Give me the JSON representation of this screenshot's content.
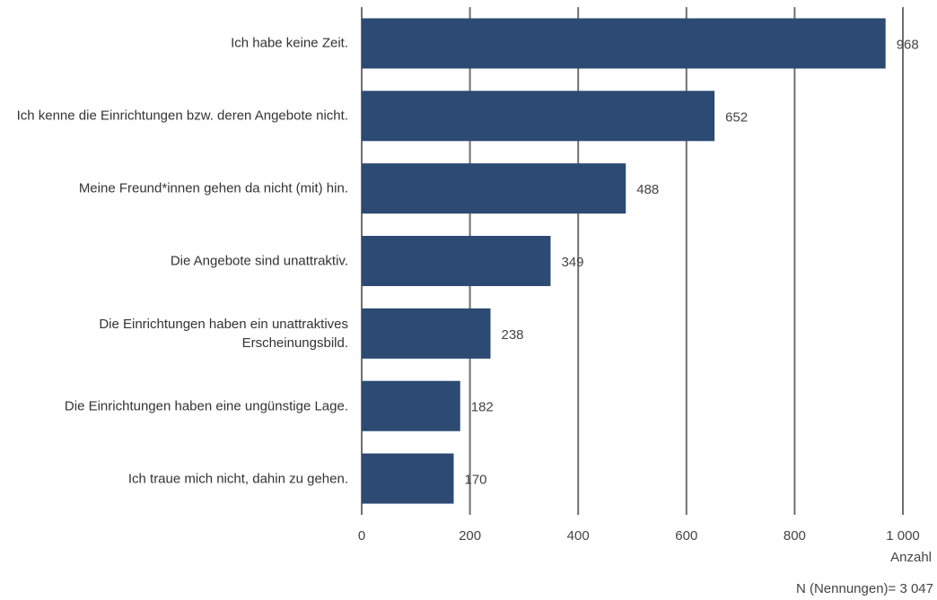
{
  "chart_data": {
    "type": "bar",
    "orientation": "horizontal",
    "categories": [
      "Ich habe keine Zeit.",
      "Ich kenne die Einrichtungen bzw. deren Angebote nicht.",
      "Meine Freund*innen gehen da nicht (mit) hin.",
      "Die Angebote sind unattraktiv.",
      "Die Einrichtungen haben ein unattraktives Erscheinungsbild.",
      "Die Einrichtungen haben eine ungünstige Lage.",
      "Ich traue mich nicht, dahin zu gehen."
    ],
    "values": [
      968,
      652,
      488,
      349,
      238,
      182,
      170
    ],
    "color": "#2c4a72",
    "xlabel": "Anzahl",
    "annotation": "N (Nennungen)= 3 047",
    "xlim": [
      0,
      1000
    ],
    "xticks": [
      0,
      200,
      400,
      600,
      800,
      {
        "value": 1000,
        "label": "1 000"
      }
    ],
    "grid": true
  }
}
